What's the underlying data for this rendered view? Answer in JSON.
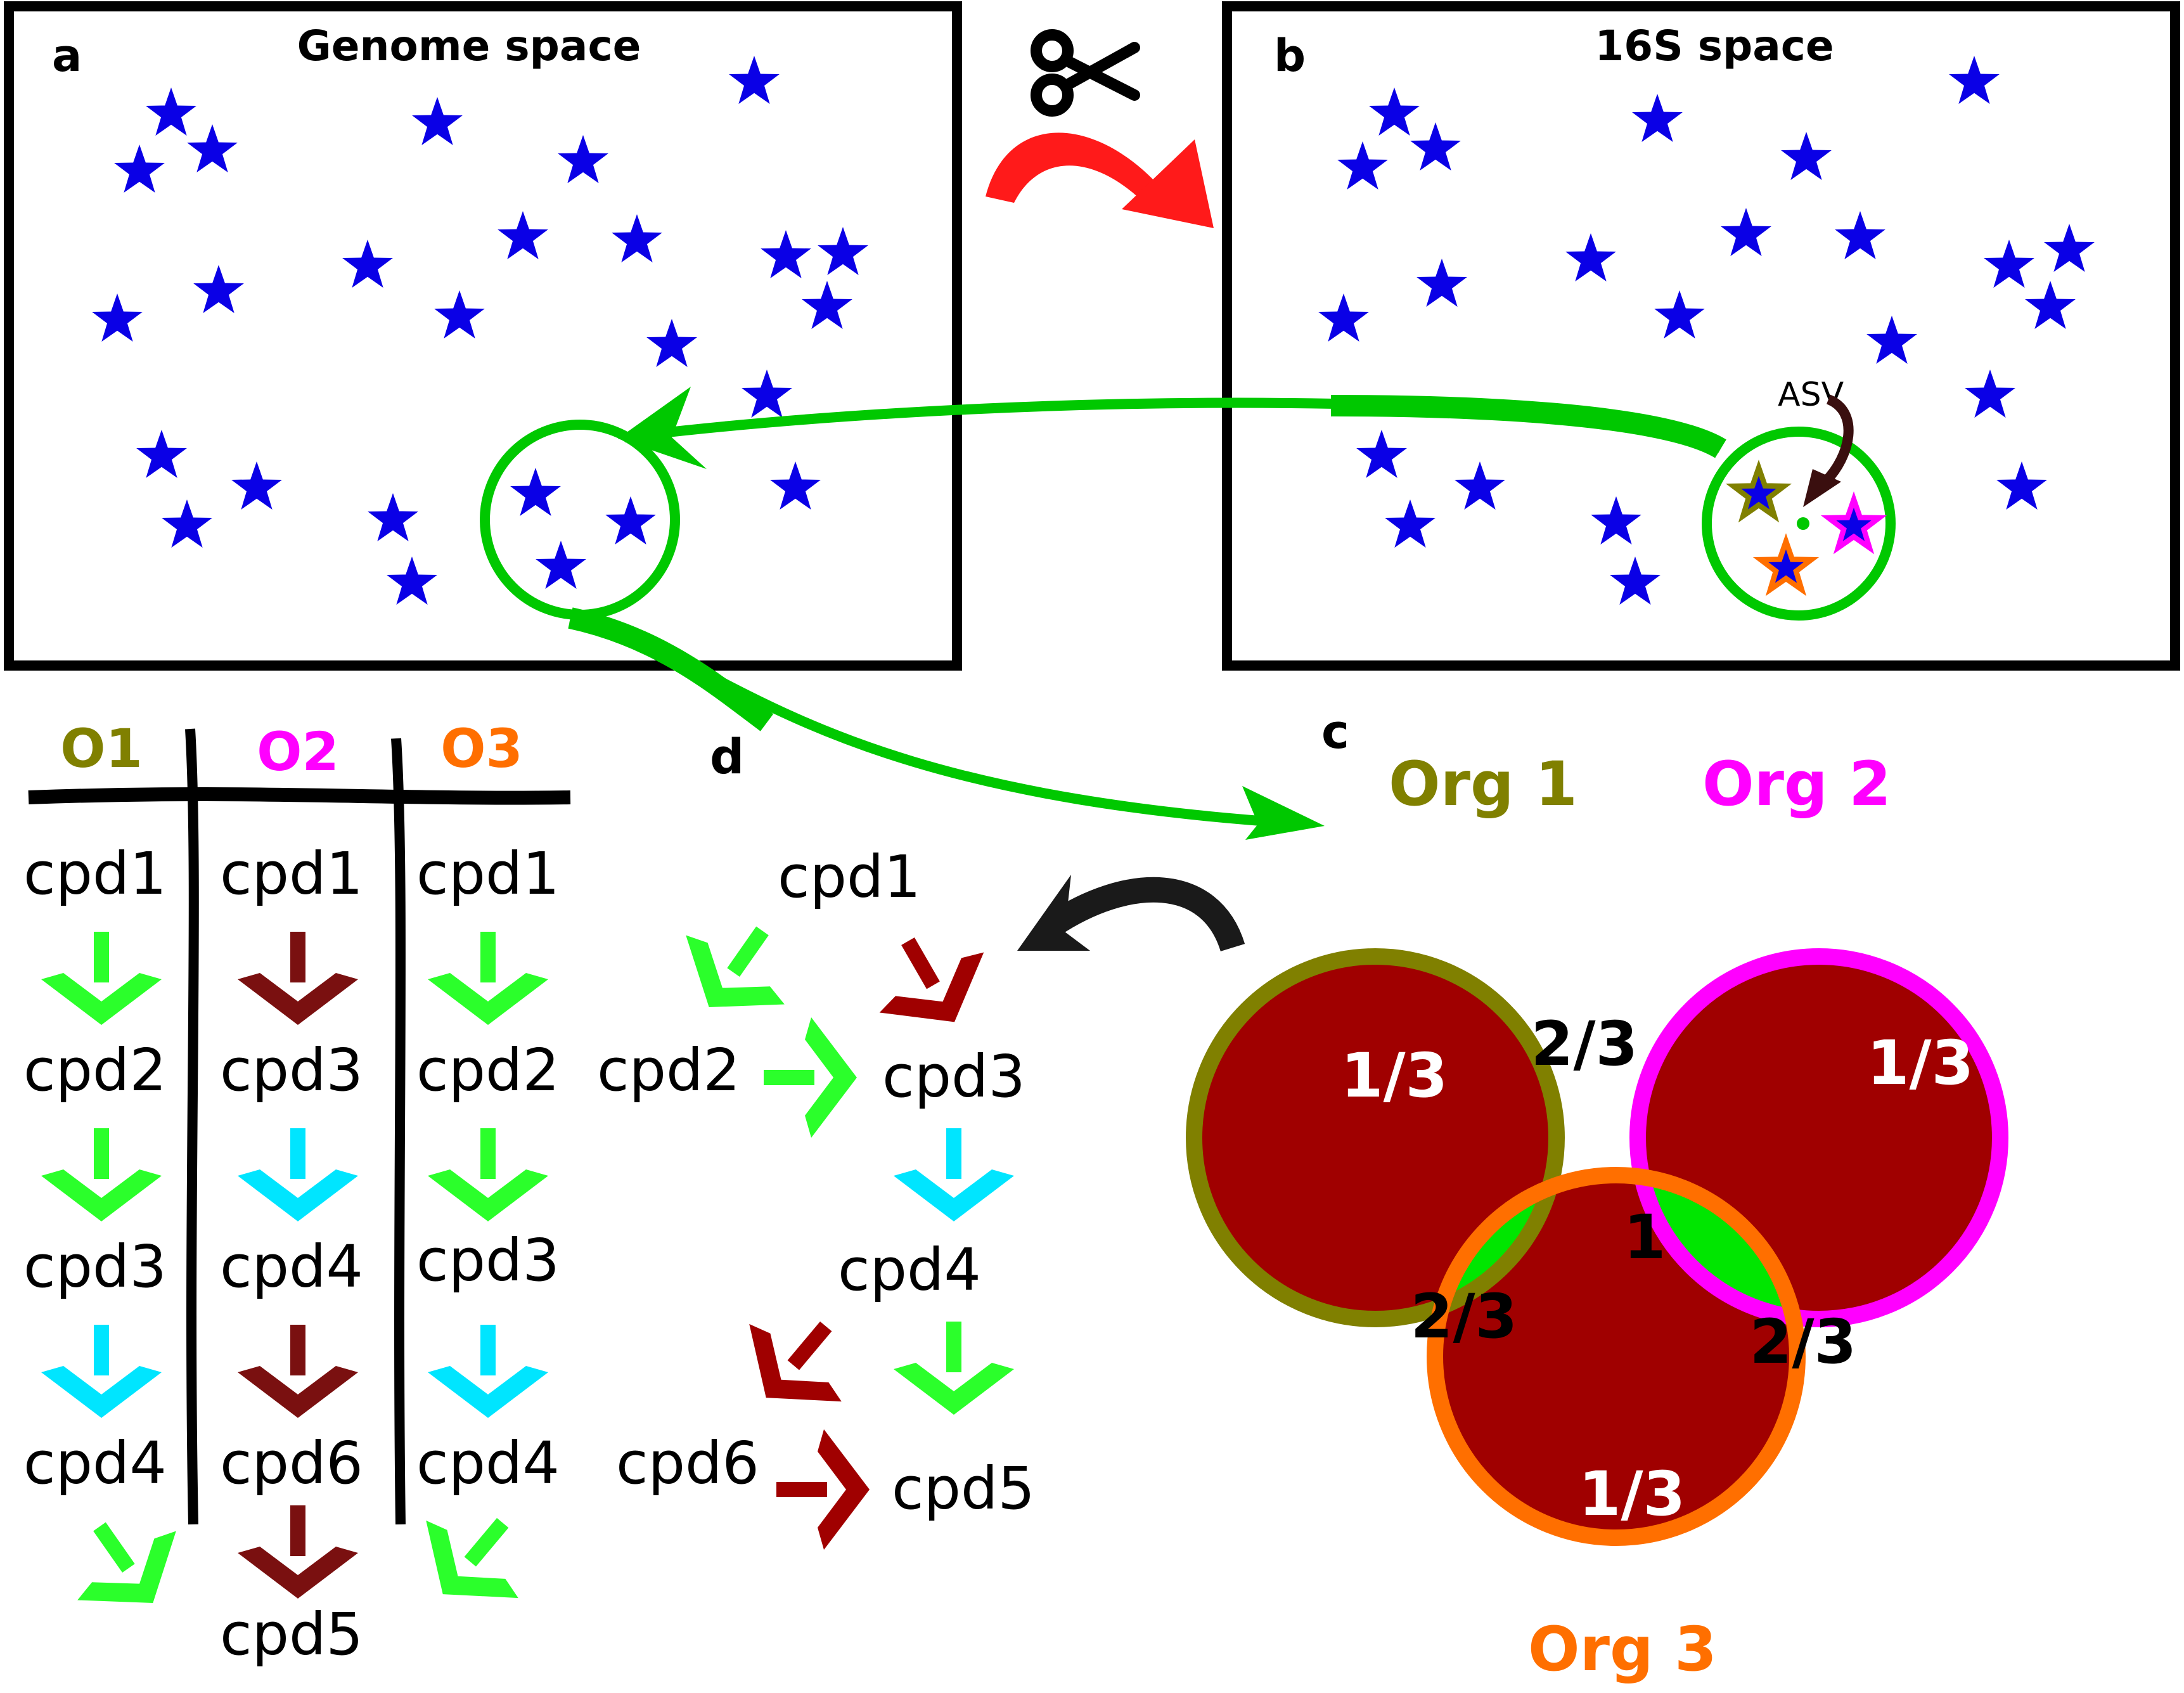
{
  "panel_a": {
    "letter": "a",
    "title": "Genome space"
  },
  "panel_b": {
    "letter": "b",
    "title": "16S space",
    "asv_label": "ASV"
  },
  "panel_c": {
    "letter": "c",
    "org_labels": [
      "Org 1",
      "Org 2",
      "Org 3"
    ],
    "region_labels": {
      "only1": "1/3",
      "only2": "1/3",
      "only3": "1/3",
      "o12": "2/3",
      "o13": "2/3",
      "o23": "2/3",
      "all": "1"
    }
  },
  "panel_d": {
    "letter": "d",
    "nodes": [
      "cpd1",
      "cpd2",
      "cpd3",
      "cpd4",
      "cpd5",
      "cpd6"
    ]
  },
  "table": {
    "headers": [
      "O1",
      "O2",
      "O3"
    ],
    "columns": [
      [
        "cpd1",
        "cpd2",
        "cpd3",
        "cpd4"
      ],
      [
        "cpd1",
        "cpd3",
        "cpd4",
        "cpd6",
        "cpd5"
      ],
      [
        "cpd1",
        "cpd2",
        "cpd3",
        "cpd4"
      ]
    ]
  },
  "colors": {
    "star": "#0a00e6",
    "org1": "#808000",
    "org2": "#ff00ff",
    "org3": "#ff6f00",
    "green": "#00e600",
    "bright_green": "#2bff2b",
    "cyan": "#00e5ff",
    "dark_red": "#a00000",
    "arrow_red": "#ff1a1a",
    "black": "#000000"
  },
  "icons": [
    "scissors-icon"
  ]
}
